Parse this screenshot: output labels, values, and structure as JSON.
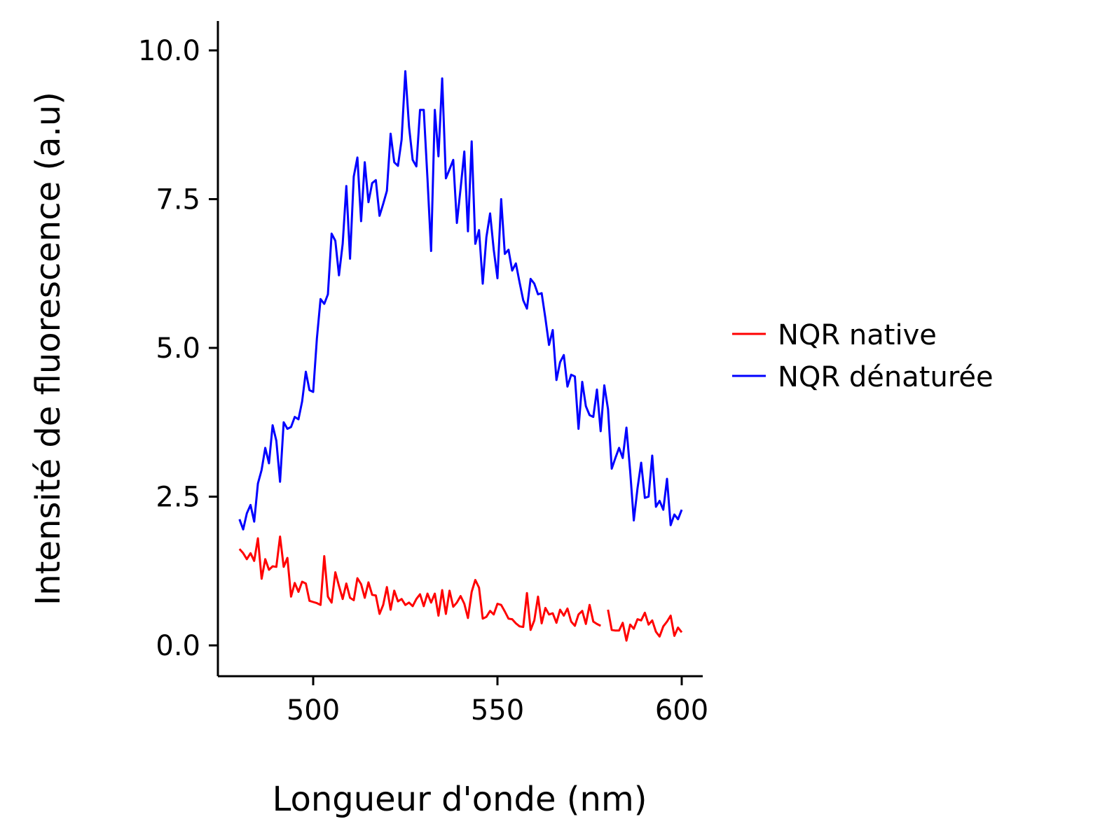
{
  "chart_data": {
    "type": "line",
    "xlabel": "Longueur d'onde (nm)",
    "ylabel": "Intensité de fluorescence (a.u)",
    "xlim": [
      475,
      606
    ],
    "ylim": [
      -0.5,
      10.5
    ],
    "xticks": [
      500,
      550,
      600
    ],
    "xtick_labels": [
      "500",
      "550",
      "600"
    ],
    "yticks": [
      0,
      2.5,
      5,
      7.5,
      10
    ],
    "ytick_labels": [
      "0.0",
      "2.5",
      "5.0",
      "7.5",
      "10.0"
    ],
    "grid": false,
    "legend": "right",
    "x_start": 480,
    "x_step": 1,
    "series": [
      {
        "name": "NQR native",
        "color": "#ff0000",
        "values": [
          1.62,
          1.55,
          1.45,
          1.55,
          1.42,
          1.8,
          1.12,
          1.45,
          1.27,
          1.33,
          1.32,
          1.83,
          1.32,
          1.47,
          0.82,
          1.05,
          0.9,
          1.07,
          1.04,
          0.75,
          0.73,
          0.71,
          0.68,
          1.5,
          0.82,
          0.72,
          1.23,
          1.0,
          0.78,
          1.04,
          0.8,
          0.76,
          1.13,
          1.03,
          0.8,
          1.06,
          0.85,
          0.84,
          0.53,
          0.68,
          0.98,
          0.6,
          0.92,
          0.74,
          0.78,
          0.68,
          0.72,
          0.66,
          0.78,
          0.86,
          0.66,
          0.87,
          0.72,
          0.87,
          0.5,
          0.93,
          0.53,
          0.92,
          0.65,
          0.72,
          0.83,
          0.7,
          0.46,
          0.9,
          1.1,
          0.97,
          0.45,
          0.48,
          0.58,
          0.52,
          0.7,
          0.68,
          0.57,
          0.45,
          0.44,
          0.37,
          0.32,
          0.31,
          0.88,
          0.26,
          0.42,
          0.82,
          0.37,
          0.63,
          0.52,
          0.54,
          0.38,
          0.6,
          0.5,
          0.62,
          0.4,
          0.33,
          0.52,
          0.58,
          0.36,
          0.68,
          0.4,
          0.36,
          0.33,
          null,
          0.6,
          0.26,
          0.25,
          0.25,
          0.38,
          0.08,
          0.35,
          0.28,
          0.44,
          0.42,
          0.55,
          0.35,
          0.42,
          0.23,
          0.15,
          0.32,
          0.4,
          0.5,
          0.16,
          0.3,
          0.22
        ],
        "comment_gap": ""
      },
      {
        "name": "NQR dénaturée",
        "color": "#0000ff",
        "values": [
          2.12,
          1.95,
          2.22,
          2.36,
          2.08,
          2.72,
          2.95,
          3.32,
          3.06,
          3.7,
          3.44,
          2.75,
          3.75,
          3.64,
          3.67,
          3.84,
          3.8,
          4.1,
          4.6,
          4.29,
          4.26,
          5.16,
          5.82,
          5.74,
          5.9,
          6.92,
          6.8,
          6.22,
          6.75,
          7.72,
          6.5,
          7.88,
          8.2,
          7.13,
          8.12,
          7.45,
          7.77,
          7.82,
          7.22,
          7.42,
          7.64,
          8.6,
          8.12,
          8.06,
          8.5,
          9.65,
          8.72,
          8.16,
          8.05,
          9.0,
          9.0,
          7.85,
          6.63,
          9.0,
          8.22,
          9.53,
          7.85,
          8.0,
          8.16,
          7.1,
          7.68,
          8.3,
          6.96,
          8.47,
          6.75,
          6.98,
          6.08,
          6.86,
          7.26,
          6.65,
          6.17,
          7.5,
          6.58,
          6.65,
          6.3,
          6.42,
          6.1,
          5.8,
          5.66,
          6.16,
          6.08,
          5.9,
          5.92,
          5.5,
          5.05,
          5.3,
          4.46,
          4.76,
          4.88,
          4.35,
          4.55,
          4.52,
          3.64,
          4.43,
          4.02,
          3.87,
          3.84,
          4.3,
          3.6,
          4.37,
          3.97,
          2.97,
          3.15,
          3.32,
          3.15,
          3.66,
          2.93,
          2.1,
          2.64,
          3.07,
          2.48,
          2.5,
          3.19,
          2.33,
          2.43,
          2.28,
          2.8,
          2.02,
          2.2,
          2.12,
          2.28
        ]
      }
    ]
  }
}
